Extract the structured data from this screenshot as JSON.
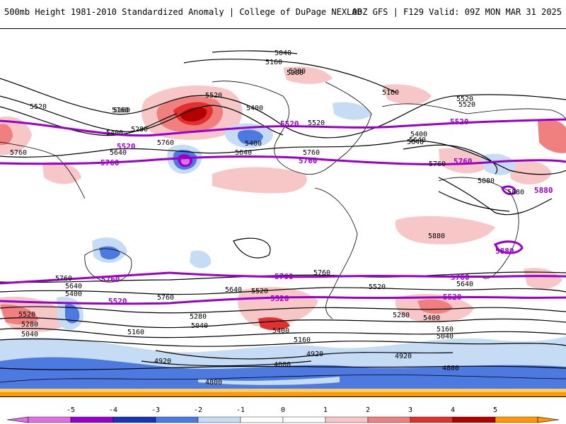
{
  "header": {
    "title": "500mb Height 1981-2010 Standardized Anomaly | College of DuPage NEXLAB",
    "run_info": "00Z GFS | F129 Valid: 09Z MON MAR 31 2025"
  },
  "map": {
    "black_contour_labels": [
      "5040",
      "5160",
      "5280",
      "5520",
      "5160",
      "5400",
      "5280",
      "5400",
      "5640",
      "5760",
      "5520",
      "5160",
      "5400",
      "5640",
      "5760",
      "5880",
      "5880",
      "5880",
      "5280",
      "5520",
      "5160",
      "5760",
      "5640",
      "5400",
      "5520",
      "5760",
      "5640",
      "5520",
      "5400",
      "5280",
      "5160",
      "5040",
      "4920",
      "4800",
      "4920",
      "4920",
      "4800",
      "4800",
      "5760",
      "5640",
      "5520",
      "5400",
      "5280",
      "5160",
      "5040",
      "5640",
      "5760",
      "5520",
      "5760",
      "5640",
      "5400",
      "5520",
      "5280",
      "5040",
      "5160"
    ],
    "purple_contour_labels": [
      "5520",
      "5520",
      "5520",
      "5760",
      "5760",
      "5760",
      "5880",
      "5880",
      "5760",
      "5760",
      "5760",
      "5520",
      "5520",
      "5520"
    ],
    "colors": {
      "neg5": "#e070e0",
      "neg4": "#9900cc",
      "neg3": "#1a33b3",
      "neg2": "#4d7ae0",
      "neg1": "#c6dcf5",
      "zero": "#ffffff",
      "pos1": "#f7c6c6",
      "pos2": "#f08080",
      "pos3": "#e03030",
      "pos4": "#b30000",
      "pos5": "#ff9900",
      "contour": "#000000",
      "contour_5520_5760": "#9900cc",
      "coast": "#000000"
    }
  },
  "legend": {
    "ticks": [
      "-5",
      "-4",
      "-3",
      "-2",
      "-1",
      "0",
      "1",
      "2",
      "3",
      "4",
      "5"
    ],
    "colors": [
      "#e070e0",
      "#9900cc",
      "#1a33b3",
      "#4d7ae0",
      "#c6dcf5",
      "#ffffff",
      "#ffffff",
      "#f7c6c6",
      "#f08080",
      "#e03030",
      "#b30000",
      "#ff9900"
    ]
  }
}
